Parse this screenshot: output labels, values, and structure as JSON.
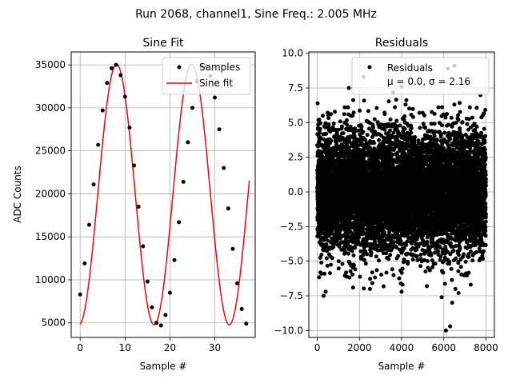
{
  "figure": {
    "suptitle": "Run 2068, channel1, Sine Freq.: 2.005 MHz"
  },
  "chart_data": [
    {
      "type": "line",
      "title": "Sine Fit",
      "xlabel": "Sample #",
      "ylabel": "ADC Counts",
      "xlim": [
        -2.0,
        39.0
      ],
      "ylim": [
        3300,
        36500
      ],
      "xticks": [
        0,
        10,
        20,
        30
      ],
      "yticks": [
        5000,
        10000,
        15000,
        20000,
        25000,
        30000,
        35000
      ],
      "grid": true,
      "legend": "upper right",
      "fit_model": {
        "amplitude": 15150,
        "offset": 19920,
        "period": 16.75,
        "peak_at": 8.1,
        "x_range": [
          0,
          37.7
        ]
      },
      "series": [
        {
          "name": "Samples",
          "kind": "scatter",
          "color": "#000000",
          "x": [
            0,
            1,
            2,
            3,
            4,
            5,
            6,
            7,
            8,
            9,
            10,
            11,
            12,
            13,
            14,
            15,
            16,
            17,
            18,
            19,
            20,
            21,
            22,
            23,
            24,
            25,
            26,
            27,
            28,
            29,
            30,
            31,
            32,
            33,
            34,
            35,
            36,
            37
          ],
          "y": [
            8300,
            11900,
            16400,
            21100,
            25700,
            29700,
            32900,
            34600,
            35000,
            33800,
            31300,
            27700,
            23300,
            18500,
            13900,
            9800,
            6800,
            5000,
            4700,
            5900,
            8500,
            12300,
            16700,
            21400,
            26000,
            30000,
            33100,
            34800,
            34900,
            33700,
            31200,
            27500,
            23000,
            18300,
            13600,
            9600,
            6600,
            4900
          ]
        },
        {
          "name": "Sine fit",
          "kind": "line",
          "color": "#ff0000"
        }
      ]
    },
    {
      "type": "scatter",
      "title": "Residuals",
      "xlabel": "Sample #",
      "ylabel": "",
      "xlim": [
        -400,
        8400
      ],
      "ylim": [
        -10.5,
        10.1
      ],
      "xticks": [
        0,
        2000,
        4000,
        6000,
        8000
      ],
      "yticks": [
        -10.0,
        -7.5,
        -5.0,
        -2.5,
        0.0,
        2.5,
        5.0,
        7.5,
        10.0
      ],
      "grid": true,
      "legend": "upper right",
      "n_points": 8000,
      "distribution": {
        "mean": 0.0,
        "sigma": 2.16
      },
      "outliers": [
        [
          2200,
          8.3
        ],
        [
          6200,
          8.9
        ],
        [
          6500,
          9.1
        ],
        [
          1500,
          7.5
        ],
        [
          4000,
          7.6
        ],
        [
          3600,
          7.2
        ],
        [
          6100,
          -10.0
        ],
        [
          6300,
          -9.7
        ],
        [
          6400,
          -8.0
        ],
        [
          6700,
          -7.3
        ],
        [
          6550,
          -7.0
        ],
        [
          5900,
          -7.6
        ],
        [
          300,
          -7.5
        ],
        [
          400,
          -7.2
        ],
        [
          2500,
          -7.0
        ],
        [
          4000,
          -7.2
        ],
        [
          5200,
          -6.8
        ],
        [
          1700,
          -6.9
        ]
      ],
      "series": [
        {
          "name": "Residuals",
          "color": "#000000",
          "legend_label_line1": "Residuals",
          "legend_label_line2": "μ = 0.0, σ = 2.16"
        }
      ]
    }
  ]
}
